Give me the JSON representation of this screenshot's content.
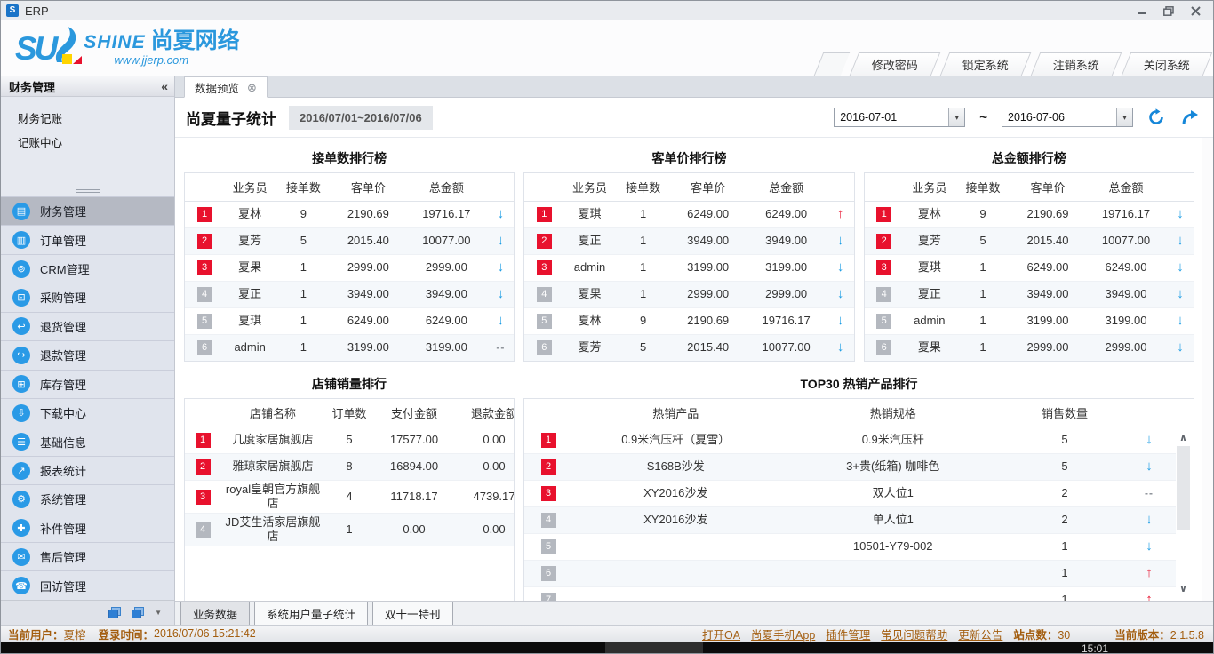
{
  "window": {
    "title": "ERP",
    "app_badge": "S"
  },
  "logo": {
    "su": "SU",
    "shine": "SHINE",
    "brand_cn": "尚夏网络",
    "website": "www.jjerp.com"
  },
  "system_tabs": [
    {
      "label": "修改密码"
    },
    {
      "label": "锁定系统"
    },
    {
      "label": "注销系统"
    },
    {
      "label": "关闭系统"
    }
  ],
  "sidebar": {
    "header": "财务管理",
    "sub_items": [
      {
        "label": "财务记账"
      },
      {
        "label": "记账中心"
      }
    ],
    "menu": [
      {
        "label": "财务管理",
        "icon": "finance-icon",
        "glyph": "▤",
        "selected": true
      },
      {
        "label": "订单管理",
        "icon": "orders-icon",
        "glyph": "▥",
        "selected": false
      },
      {
        "label": "CRM管理",
        "icon": "crm-icon",
        "glyph": "⊚",
        "selected": false
      },
      {
        "label": "采购管理",
        "icon": "purchasing-icon",
        "glyph": "⊡",
        "selected": false
      },
      {
        "label": "退货管理",
        "icon": "return-goods-icon",
        "glyph": "↩",
        "selected": false
      },
      {
        "label": "退款管理",
        "icon": "refund-icon",
        "glyph": "↪",
        "selected": false
      },
      {
        "label": "库存管理",
        "icon": "inventory-icon",
        "glyph": "⊞",
        "selected": false
      },
      {
        "label": "下载中心",
        "icon": "download-center-icon",
        "glyph": "⇩",
        "selected": false
      },
      {
        "label": "基础信息",
        "icon": "basic-info-icon",
        "glyph": "☰",
        "selected": false
      },
      {
        "label": "报表统计",
        "icon": "report-stats-icon",
        "glyph": "↗",
        "selected": false
      },
      {
        "label": "系统管理",
        "icon": "system-manage-icon",
        "glyph": "⚙",
        "selected": false
      },
      {
        "label": "补件管理",
        "icon": "parts-icon",
        "glyph": "✚",
        "selected": false
      },
      {
        "label": "售后管理",
        "icon": "aftersale-icon",
        "glyph": "✉",
        "selected": false
      },
      {
        "label": "回访管理",
        "icon": "callback-icon",
        "glyph": "☎",
        "selected": false
      }
    ]
  },
  "main": {
    "tab": {
      "label": "数据预览"
    },
    "page_title": "尚夏量子统计",
    "date_badge": "2016/07/01~2016/07/06",
    "date_from": "2016-07-01",
    "date_to": "2016-07-06",
    "range_separator": "~"
  },
  "icons": {
    "collapse": "«",
    "tab_close": "⊗",
    "dropdown": "▾",
    "scroll_up": "∧",
    "scroll_down": "∨",
    "toolbar_caret": "▼"
  },
  "trend_glyphs": {
    "down": "↓",
    "up": "↑",
    "none": "--"
  },
  "ranking_tables": [
    {
      "title": "接单数排行榜",
      "headers": [
        "业务员",
        "接单数",
        "客单价",
        "总金额"
      ],
      "rows": [
        {
          "rank": 1,
          "cells": [
            "夏林",
            "9",
            "2190.69",
            "19716.17"
          ],
          "trend": "down"
        },
        {
          "rank": 2,
          "cells": [
            "夏芳",
            "5",
            "2015.40",
            "10077.00"
          ],
          "trend": "down"
        },
        {
          "rank": 3,
          "cells": [
            "夏果",
            "1",
            "2999.00",
            "2999.00"
          ],
          "trend": "down"
        },
        {
          "rank": 4,
          "cells": [
            "夏正",
            "1",
            "3949.00",
            "3949.00"
          ],
          "trend": "down"
        },
        {
          "rank": 5,
          "cells": [
            "夏琪",
            "1",
            "6249.00",
            "6249.00"
          ],
          "trend": "down"
        },
        {
          "rank": 6,
          "cells": [
            "admin",
            "1",
            "3199.00",
            "3199.00"
          ],
          "trend": "none"
        }
      ]
    },
    {
      "title": "客单价排行榜",
      "headers": [
        "业务员",
        "接单数",
        "客单价",
        "总金额"
      ],
      "rows": [
        {
          "rank": 1,
          "cells": [
            "夏琪",
            "1",
            "6249.00",
            "6249.00"
          ],
          "trend": "up"
        },
        {
          "rank": 2,
          "cells": [
            "夏正",
            "1",
            "3949.00",
            "3949.00"
          ],
          "trend": "down"
        },
        {
          "rank": 3,
          "cells": [
            "admin",
            "1",
            "3199.00",
            "3199.00"
          ],
          "trend": "down"
        },
        {
          "rank": 4,
          "cells": [
            "夏果",
            "1",
            "2999.00",
            "2999.00"
          ],
          "trend": "down"
        },
        {
          "rank": 5,
          "cells": [
            "夏林",
            "9",
            "2190.69",
            "19716.17"
          ],
          "trend": "down"
        },
        {
          "rank": 6,
          "cells": [
            "夏芳",
            "5",
            "2015.40",
            "10077.00"
          ],
          "trend": "down"
        }
      ]
    },
    {
      "title": "总金额排行榜",
      "headers": [
        "业务员",
        "接单数",
        "客单价",
        "总金额"
      ],
      "rows": [
        {
          "rank": 1,
          "cells": [
            "夏林",
            "9",
            "2190.69",
            "19716.17"
          ],
          "trend": "down"
        },
        {
          "rank": 2,
          "cells": [
            "夏芳",
            "5",
            "2015.40",
            "10077.00"
          ],
          "trend": "down"
        },
        {
          "rank": 3,
          "cells": [
            "夏琪",
            "1",
            "6249.00",
            "6249.00"
          ],
          "trend": "down"
        },
        {
          "rank": 4,
          "cells": [
            "夏正",
            "1",
            "3949.00",
            "3949.00"
          ],
          "trend": "down"
        },
        {
          "rank": 5,
          "cells": [
            "admin",
            "1",
            "3199.00",
            "3199.00"
          ],
          "trend": "down"
        },
        {
          "rank": 6,
          "cells": [
            "夏果",
            "1",
            "2999.00",
            "2999.00"
          ],
          "trend": "down"
        }
      ]
    }
  ],
  "shop_table": {
    "title": "店铺销量排行",
    "headers": [
      "店铺名称",
      "订单数",
      "支付金额",
      "退款金额"
    ],
    "rows": [
      {
        "rank": 1,
        "cells": [
          "几度家居旗舰店",
          "5",
          "17577.00",
          "0.00"
        ],
        "trend": "down"
      },
      {
        "rank": 2,
        "cells": [
          "雅琼家居旗舰店",
          "8",
          "16894.00",
          "0.00"
        ],
        "trend": "down"
      },
      {
        "rank": 3,
        "cells": [
          "royal皇朝官方旗舰店",
          "4",
          "11718.17",
          "4739.17"
        ],
        "trend": "up"
      },
      {
        "rank": 4,
        "cells": [
          "JD艾生活家居旗舰店",
          "1",
          "0.00",
          "0.00"
        ],
        "trend": "up"
      }
    ]
  },
  "top30_table": {
    "title": "TOP30 热销产品排行",
    "headers": [
      "热销产品",
      "热销规格",
      "销售数量"
    ],
    "rows": [
      {
        "rank": 1,
        "cells": [
          "0.9米汽压杆（夏雪）",
          "0.9米汽压杆",
          "5"
        ],
        "trend": "down"
      },
      {
        "rank": 2,
        "cells": [
          "S168B沙发",
          "3+贵(纸箱) 咖啡色",
          "5"
        ],
        "trend": "down"
      },
      {
        "rank": 3,
        "cells": [
          "XY2016沙发",
          "双人位1",
          "2"
        ],
        "trend": "none"
      },
      {
        "rank": 4,
        "cells": [
          "XY2016沙发",
          "单人位1",
          "2"
        ],
        "trend": "down"
      },
      {
        "rank": 5,
        "cells": [
          "",
          "10501-Y79-002",
          "1"
        ],
        "trend": "down"
      },
      {
        "rank": 6,
        "cells": [
          "",
          "",
          "1"
        ],
        "trend": "up"
      },
      {
        "rank": 7,
        "cells": [
          "",
          "",
          "1"
        ],
        "trend": "up"
      }
    ]
  },
  "bottom_tabs": [
    {
      "label": "业务数据",
      "active": true
    },
    {
      "label": "系统用户量子统计",
      "active": false
    },
    {
      "label": "双十一特刊",
      "active": false
    }
  ],
  "status_bar": {
    "user_label": "当前用户：",
    "user_name": "夏榕",
    "login_label": "登录时间：",
    "login_time": "2016/07/06 15:21:42",
    "links": [
      {
        "label": "打开OA"
      },
      {
        "label": "尚夏手机App"
      },
      {
        "label": "插件管理"
      },
      {
        "label": "常见问题帮助"
      },
      {
        "label": "更新公告"
      }
    ],
    "sites_label": "站点数：",
    "sites_count": "30",
    "version_label": "当前版本：",
    "version": "2.1.5.8"
  },
  "taskbar": {
    "clock": "15:01"
  },
  "colors": {
    "accent_blue": "#1b9ce4",
    "rank_red": "#e8112d",
    "rank_gray": "#b4b8bf",
    "status_text": "#a35e10",
    "brand_blue": "#2b98dd"
  }
}
